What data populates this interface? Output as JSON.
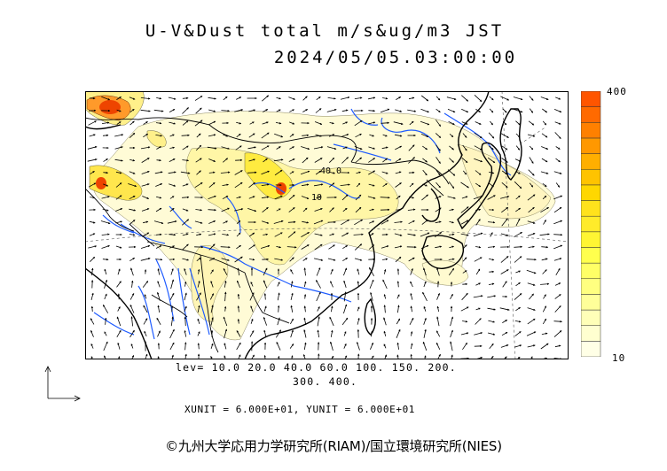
{
  "header": {
    "title_line1": "U-V&Dust total m/s&ug/m3 JST",
    "title_line2": "2024/05/05.03:00:00"
  },
  "colorbar": {
    "max_label": "400",
    "min_label": "10",
    "colors": [
      "#ffffe6",
      "#ffffd0",
      "#ffffb8",
      "#ffff99",
      "#ffff80",
      "#ffff66",
      "#ffff4d",
      "#fff533",
      "#ffeb2a",
      "#ffe21c",
      "#ffd700",
      "#ffc300",
      "#ffaf00",
      "#ff9800",
      "#ff8000",
      "#ff6a00",
      "#ff5500"
    ]
  },
  "contour_levels": {
    "line1": "lev= 10.0 20.0 40.0 60.0 100. 150. 200.",
    "line2": "300. 400."
  },
  "map": {
    "contour_labels": [
      "40.0",
      "10"
    ],
    "colors": {
      "land_line": "#000000",
      "river": "#1e5bff",
      "dust_low": "#fffad0",
      "dust_mid": "#fff066",
      "dust_high": "#ff8c1a",
      "dust_peak": "#ee3300"
    }
  },
  "units_line": "XUNIT = 6.000E+01, YUNIT = 6.000E+01",
  "copyright": "©九州大学応用力学研究所(RIAM)/国立環境研究所(NIES)"
}
